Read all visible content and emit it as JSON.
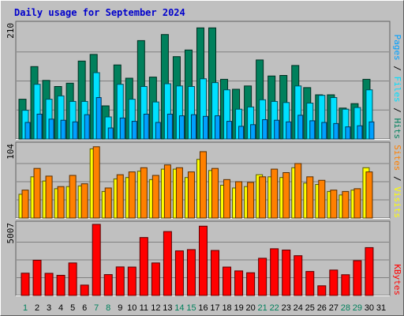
{
  "title": "Daily usage for September 2024",
  "colors": {
    "background": "#c0c0c0",
    "title": "#0000cc",
    "grid": "#808080",
    "hits": "#00805c",
    "files": "#00e0ff",
    "pages": "#00a0ff",
    "visits": "#ffff00",
    "sites": "#ff8000",
    "kbytes": "#ff0000",
    "weekend_day": "#00805c",
    "weekday": "#000000"
  },
  "chart_data": [
    {
      "type": "bar",
      "panel": "hits-files-pages",
      "ymax_label": "210",
      "ylim": [
        0,
        210
      ],
      "legend": [
        "Pages",
        "Files",
        "Hits"
      ],
      "x": [
        1,
        2,
        3,
        4,
        5,
        6,
        7,
        8,
        9,
        10,
        11,
        12,
        13,
        14,
        15,
        16,
        17,
        18,
        19,
        20,
        21,
        22,
        23,
        24,
        25,
        26,
        27,
        28,
        29,
        30,
        31
      ],
      "series": [
        {
          "name": "Hits",
          "color": "#00805c",
          "values": [
            72,
            131,
            106,
            95,
            101,
            141,
            153,
            60,
            134,
            110,
            178,
            112,
            189,
            149,
            161,
            201,
            201,
            108,
            90,
            96,
            143,
            114,
            115,
            133,
            93,
            80,
            80,
            56,
            64,
            108,
            0
          ]
        },
        {
          "name": "Files",
          "color": "#00e0ff",
          "values": [
            52,
            99,
            72,
            78,
            68,
            68,
            120,
            40,
            99,
            72,
            95,
            67,
            100,
            96,
            95,
            109,
            102,
            89,
            54,
            58,
            71,
            68,
            66,
            96,
            65,
            79,
            75,
            54,
            57,
            89,
            0
          ]
        },
        {
          "name": "Pages",
          "color": "#00a0ff",
          "values": [
            30,
            45,
            36,
            34,
            31,
            44,
            75,
            20,
            38,
            32,
            45,
            30,
            45,
            42,
            44,
            41,
            42,
            32,
            23,
            26,
            35,
            34,
            31,
            43,
            33,
            30,
            28,
            22,
            24,
            31,
            0
          ]
        }
      ]
    },
    {
      "type": "bar",
      "panel": "visits-sites",
      "ymax_label": "104",
      "ylim": [
        0,
        104
      ],
      "legend": [
        "Sites",
        "Visits"
      ],
      "x": [
        1,
        2,
        3,
        4,
        5,
        6,
        7,
        8,
        9,
        10,
        11,
        12,
        13,
        14,
        15,
        16,
        17,
        18,
        19,
        20,
        21,
        22,
        23,
        24,
        25,
        26,
        27,
        28,
        29,
        30,
        31
      ],
      "series": [
        {
          "name": "Visits",
          "color": "#ffff00",
          "values": [
            34,
            59,
            53,
            42,
            45,
            46,
            99,
            38,
            56,
            58,
            67,
            55,
            70,
            70,
            58,
            84,
            68,
            47,
            43,
            45,
            62,
            59,
            58,
            72,
            50,
            48,
            38,
            33,
            40,
            72,
            0
          ]
        },
        {
          "name": "Sites",
          "color": "#ff8000",
          "values": [
            40,
            71,
            60,
            45,
            61,
            49,
            102,
            43,
            62,
            66,
            72,
            61,
            76,
            72,
            66,
            95,
            71,
            55,
            52,
            51,
            59,
            70,
            65,
            78,
            59,
            54,
            40,
            38,
            42,
            66,
            0
          ]
        }
      ]
    },
    {
      "type": "bar",
      "panel": "kbytes",
      "ymax_label": "5007",
      "ylim": [
        0,
        5007
      ],
      "legend": [
        "KBytes"
      ],
      "x": [
        1,
        2,
        3,
        4,
        5,
        6,
        7,
        8,
        9,
        10,
        11,
        12,
        13,
        14,
        15,
        16,
        17,
        18,
        19,
        20,
        21,
        22,
        23,
        24,
        25,
        26,
        27,
        28,
        29,
        30,
        31
      ],
      "series": [
        {
          "name": "KBytes",
          "color": "#ff0000",
          "values": [
            1570,
            2480,
            1560,
            1420,
            2290,
            730,
            5007,
            1470,
            2010,
            2000,
            4080,
            2290,
            4500,
            3140,
            3230,
            4880,
            3170,
            2000,
            1730,
            1600,
            2620,
            3290,
            3200,
            2800,
            1690,
            680,
            1790,
            1460,
            2450,
            3370,
            0
          ]
        }
      ]
    }
  ],
  "x_labels": [
    "1",
    "2",
    "3",
    "4",
    "5",
    "6",
    "7",
    "8",
    "9",
    "10",
    "11",
    "12",
    "13",
    "14",
    "15",
    "16",
    "17",
    "18",
    "19",
    "20",
    "21",
    "22",
    "23",
    "24",
    "25",
    "26",
    "27",
    "28",
    "29",
    "30",
    "31"
  ],
  "weekend_days": [
    1,
    7,
    8,
    14,
    15,
    21,
    22,
    28,
    29
  ],
  "side_legends": [
    {
      "parts": [
        {
          "text": "Pages",
          "color": "#00a0ff"
        },
        {
          "text": " / ",
          "color": "#000000"
        },
        {
          "text": "Files",
          "color": "#00e0ff"
        },
        {
          "text": " / ",
          "color": "#000000"
        },
        {
          "text": "Hits",
          "color": "#00805c"
        }
      ]
    },
    {
      "parts": [
        {
          "text": "Sites",
          "color": "#ff8000"
        },
        {
          "text": " / ",
          "color": "#000000"
        },
        {
          "text": "Visits",
          "color": "#ffff00"
        }
      ]
    },
    {
      "parts": [
        {
          "text": "KBytes",
          "color": "#ff0000"
        }
      ]
    }
  ]
}
